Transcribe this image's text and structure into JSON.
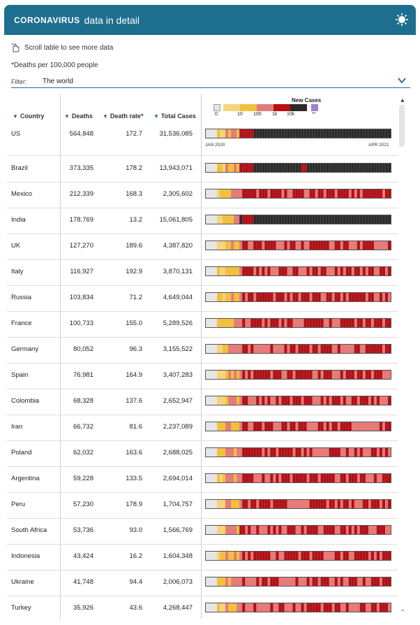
{
  "header": {
    "brand": "CORONAVIRUS",
    "title": "data in detail"
  },
  "hint": "Scroll table to see more data",
  "note": "*Deaths per 100,000 people",
  "filter": {
    "label": "Filter:",
    "value": "The world"
  },
  "columns": {
    "country": "Country",
    "deaths": "Deaths",
    "rate": "Death rate*",
    "total": "Total Cases"
  },
  "legend": {
    "title": "New Cases",
    "ticks": [
      "0",
      "10",
      "100",
      "1k",
      "10k",
      "**"
    ],
    "colors": {
      "none": "#e6e6e6",
      "c1": "#f6d47a",
      "c2": "#f2c040",
      "c3": "#e57b7b",
      "c4": "#b80d12",
      "c5": "#2b2b2b",
      "na": "#9b84cc"
    }
  },
  "date_range": {
    "start": "JAN 2020",
    "end": "APR 2021"
  },
  "rows": [
    {
      "country": "US",
      "deaths": "564,848",
      "rate": "172.7",
      "total": "31,536,085"
    },
    {
      "country": "Brazil",
      "deaths": "373,335",
      "rate": "178.2",
      "total": "13,943,071"
    },
    {
      "country": "Mexico",
      "deaths": "212,339",
      "rate": "168.3",
      "total": "2,305,602"
    },
    {
      "country": "India",
      "deaths": "178,769",
      "rate": "13.2",
      "total": "15,061,805"
    },
    {
      "country": "UK",
      "deaths": "127,270",
      "rate": "189.6",
      "total": "4,387,820"
    },
    {
      "country": "Italy",
      "deaths": "116,927",
      "rate": "192.9",
      "total": "3,870,131"
    },
    {
      "country": "Russia",
      "deaths": "103,834",
      "rate": "71.2",
      "total": "4,649,044"
    },
    {
      "country": "France",
      "deaths": "100,733",
      "rate": "155.0",
      "total": "5,289,526"
    },
    {
      "country": "Germany",
      "deaths": "80,052",
      "rate": "96.3",
      "total": "3,155,522"
    },
    {
      "country": "Spain",
      "deaths": "76,981",
      "rate": "164.9",
      "total": "3,407,283"
    },
    {
      "country": "Colombia",
      "deaths": "68,328",
      "rate": "137.6",
      "total": "2,652,947"
    },
    {
      "country": "Iran",
      "deaths": "66,732",
      "rate": "81.6",
      "total": "2,237,089"
    },
    {
      "country": "Poland",
      "deaths": "62,032",
      "rate": "163.6",
      "total": "2,688,025"
    },
    {
      "country": "Argentina",
      "deaths": "59,228",
      "rate": "133.5",
      "total": "2,694,014"
    },
    {
      "country": "Peru",
      "deaths": "57,230",
      "rate": "178.9",
      "total": "1,704,757"
    },
    {
      "country": "South Africa",
      "deaths": "53,736",
      "rate": "93.0",
      "total": "1,566,769"
    },
    {
      "country": "Indonesia",
      "deaths": "43,424",
      "rate": "16.2",
      "total": "1,604,348"
    },
    {
      "country": "Ukraine",
      "deaths": "41,748",
      "rate": "94.4",
      "total": "2,006,073"
    },
    {
      "country": "Turkey",
      "deaths": "35,926",
      "rate": "43.6",
      "total": "4,268,447"
    }
  ]
}
